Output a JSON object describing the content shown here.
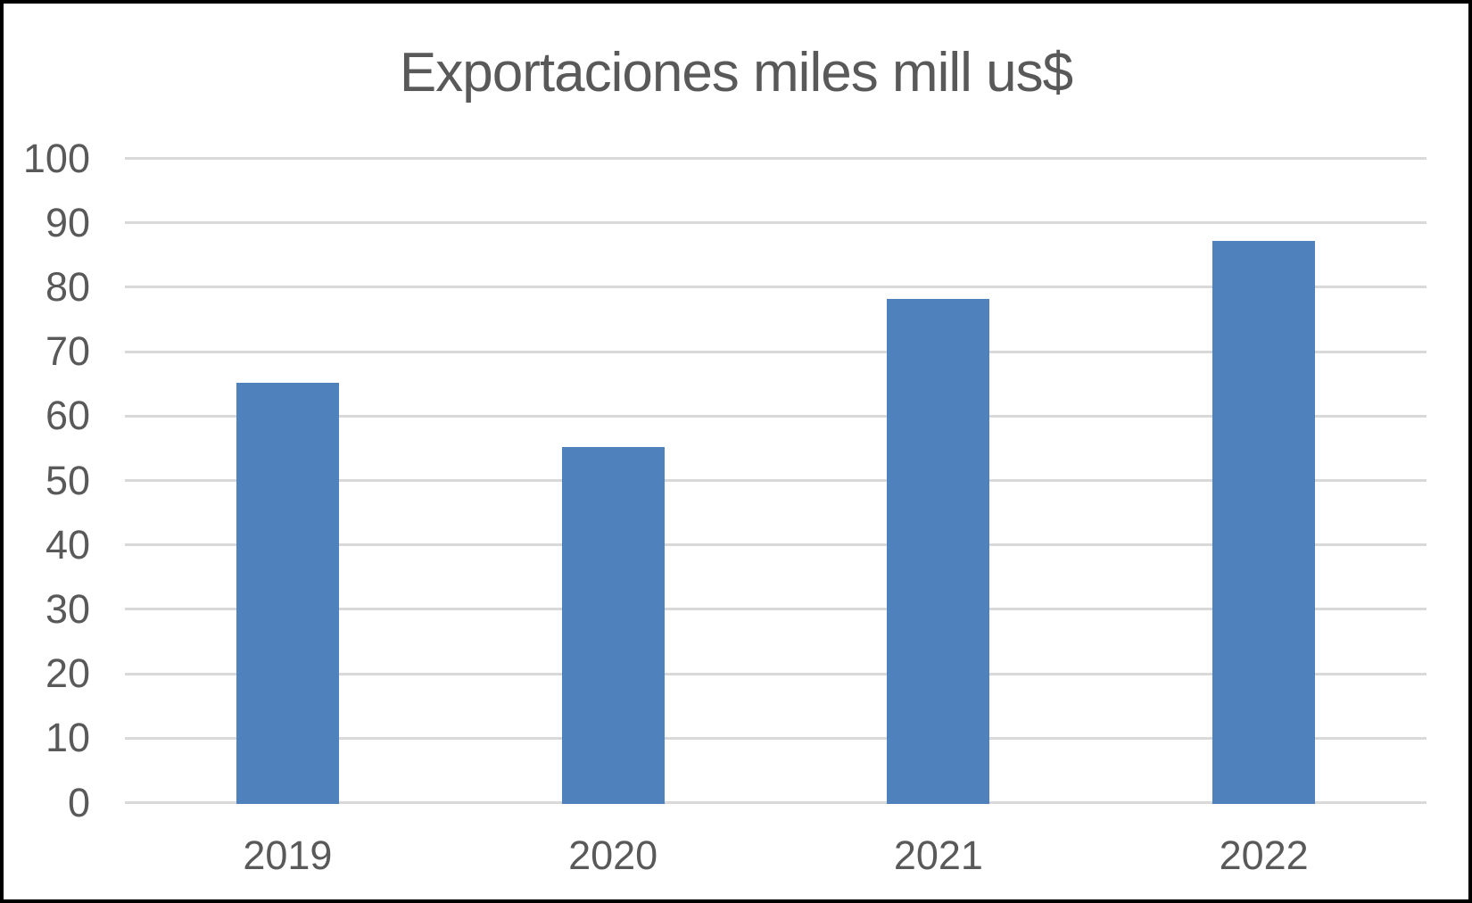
{
  "frame": {
    "background": "#ffffff",
    "border_color": "#000000"
  },
  "chart_data": {
    "type": "bar",
    "title": "Exportaciones miles mill us$",
    "categories": [
      "2019",
      "2020",
      "2021",
      "2022"
    ],
    "values": [
      65,
      55,
      78,
      87
    ],
    "xlabel": "",
    "ylabel": "",
    "ylim": [
      0,
      100
    ],
    "yticks": [
      0,
      10,
      20,
      30,
      40,
      50,
      60,
      70,
      80,
      90,
      100
    ],
    "grid": true,
    "legend": false,
    "bar_color": "#4f81bd",
    "gridline_color": "#d9d9d9",
    "label_color": "#595959",
    "title_color": "#595959"
  }
}
